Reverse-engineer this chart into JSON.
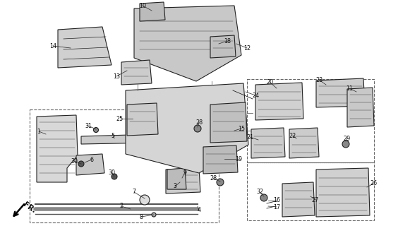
{
  "bg_color": "#ffffff",
  "line_color": "#222222",
  "fr_text": "FR."
}
